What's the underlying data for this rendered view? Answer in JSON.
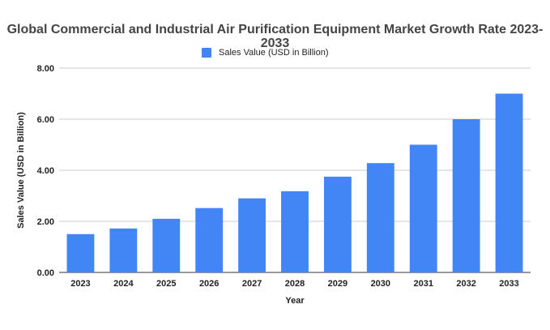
{
  "chart_data": {
    "type": "bar",
    "title_line_1": "Global Commercial and Industrial Air Purification Equipment Market Growth Rate 2023-",
    "title_line_2": "2033",
    "xlabel": "Year",
    "ylabel": "Sales Value (USD in Billion)",
    "categories": [
      "2023",
      "2024",
      "2025",
      "2026",
      "2027",
      "2028",
      "2029",
      "2030",
      "2031",
      "2032",
      "2033"
    ],
    "series": [
      {
        "name": "Sales Value (USD in Billion)",
        "values": [
          1.5,
          1.72,
          2.1,
          2.52,
          2.9,
          3.18,
          3.75,
          4.28,
          5.0,
          6.0,
          7.0
        ]
      }
    ],
    "ylim": [
      0,
      8
    ],
    "yticks": [
      "0.00",
      "2.00",
      "4.00",
      "6.00",
      "8.00"
    ],
    "legend_position": "top",
    "grid": true,
    "bar_color": "#4285f4"
  }
}
